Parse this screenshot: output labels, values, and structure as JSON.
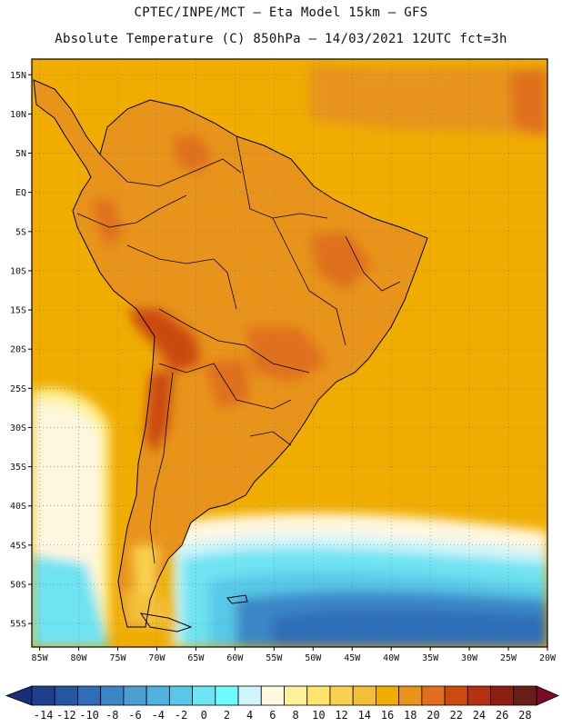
{
  "header": {
    "line1": "CPTEC/INPE/MCT –  Eta Model 15km – GFS",
    "line2": "Absolute Temperature (C) 850hPa – 14/03/2021 12UTC fct=3h"
  },
  "map": {
    "lon_range": [
      -86,
      -20
    ],
    "lat_range": [
      -58,
      17
    ],
    "lat_ticks": [
      {
        "value": 15,
        "label": "15N"
      },
      {
        "value": 10,
        "label": "10N"
      },
      {
        "value": 5,
        "label": "5N"
      },
      {
        "value": 0,
        "label": "EQ"
      },
      {
        "value": -5,
        "label": "5S"
      },
      {
        "value": -10,
        "label": "10S"
      },
      {
        "value": -15,
        "label": "15S"
      },
      {
        "value": -20,
        "label": "20S"
      },
      {
        "value": -25,
        "label": "25S"
      },
      {
        "value": -30,
        "label": "30S"
      },
      {
        "value": -35,
        "label": "35S"
      },
      {
        "value": -40,
        "label": "40S"
      },
      {
        "value": -45,
        "label": "45S"
      },
      {
        "value": -50,
        "label": "50S"
      },
      {
        "value": -55,
        "label": "55S"
      }
    ],
    "lon_ticks": [
      {
        "value": -85,
        "label": "85W"
      },
      {
        "value": -80,
        "label": "80W"
      },
      {
        "value": -75,
        "label": "75W"
      },
      {
        "value": -70,
        "label": "70W"
      },
      {
        "value": -65,
        "label": "65W"
      },
      {
        "value": -60,
        "label": "60W"
      },
      {
        "value": -55,
        "label": "55W"
      },
      {
        "value": -50,
        "label": "50W"
      },
      {
        "value": -45,
        "label": "45W"
      },
      {
        "value": -40,
        "label": "40W"
      },
      {
        "value": -35,
        "label": "35W"
      },
      {
        "value": -30,
        "label": "30W"
      },
      {
        "value": -25,
        "label": "25W"
      },
      {
        "value": -20,
        "label": "20W"
      }
    ],
    "ocean_base_color": "#f0ad00",
    "land_base_color": "#e8941a",
    "coast_color": "#000000"
  },
  "colorbar": {
    "colors": [
      "#1e3f8c",
      "#2456a3",
      "#2f6db8",
      "#3a86c6",
      "#4a9ed2",
      "#4fb3dd",
      "#58c8e8",
      "#6ee3f2",
      "#6ffcfc",
      "#cdf5fb",
      "#fff7e0",
      "#fff19a",
      "#fee46a",
      "#fad050",
      "#f4bf38",
      "#f0ad00",
      "#e8941a",
      "#e0701e",
      "#cc4a10",
      "#b43210",
      "#8c2010",
      "#6a1e18"
    ],
    "low_arrow_color": "#1a2d7a",
    "high_arrow_color": "#7a0a28",
    "labels": [
      "-14",
      "-12",
      "-10",
      "-8",
      "-6",
      "-4",
      "-2",
      "0",
      "2",
      "4",
      "6",
      "8",
      "10",
      "12",
      "14",
      "16",
      "18",
      "20",
      "22",
      "24",
      "26",
      "28"
    ]
  }
}
